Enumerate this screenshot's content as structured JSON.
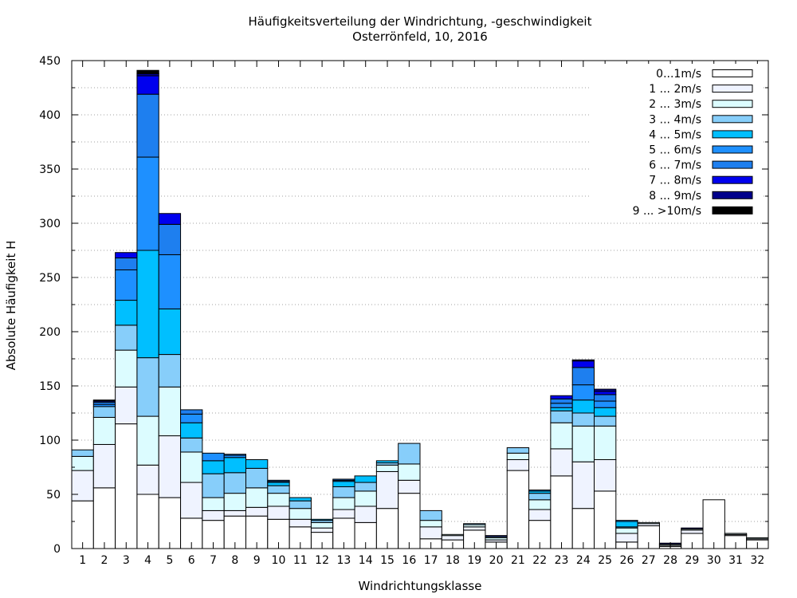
{
  "chart_data": {
    "type": "bar",
    "stacked": true,
    "title": "Häufigkeitsverteilung der Windrichtung, -geschwindigkeit",
    "subtitle": "Osterrönfeld, 10, 2016",
    "xlabel": "Windrichtungsklasse",
    "ylabel": "Absolute Häufigkeit H",
    "ylim": [
      0,
      450
    ],
    "yticks": [
      0,
      50,
      100,
      150,
      200,
      250,
      300,
      350,
      400,
      450
    ],
    "grid": "horizontal dotted",
    "legend_position": "top-right",
    "categories": [
      "1",
      "2",
      "3",
      "4",
      "5",
      "6",
      "7",
      "8",
      "9",
      "10",
      "11",
      "12",
      "13",
      "14",
      "15",
      "16",
      "17",
      "18",
      "19",
      "20",
      "21",
      "22",
      "23",
      "24",
      "25",
      "26",
      "27",
      "28",
      "29",
      "30",
      "31",
      "32"
    ],
    "series": [
      {
        "name": "0...1m/s",
        "color": "#ffffff",
        "values": [
          44,
          56,
          115,
          50,
          47,
          28,
          26,
          30,
          30,
          27,
          20,
          15,
          28,
          24,
          37,
          51,
          9,
          8,
          17,
          6,
          72,
          26,
          67,
          37,
          53,
          6,
          21,
          2,
          14,
          45,
          12,
          8
        ]
      },
      {
        "name": "1 ... 2m/s",
        "color": "#eff3ff",
        "values": [
          28,
          40,
          34,
          27,
          57,
          33,
          9,
          5,
          8,
          12,
          7,
          4,
          8,
          15,
          34,
          12,
          11,
          4,
          3,
          2,
          10,
          10,
          25,
          43,
          29,
          8,
          2,
          1,
          3,
          0,
          1,
          1
        ]
      },
      {
        "name": "2 ... 3m/s",
        "color": "#dcfcff",
        "values": [
          13,
          25,
          34,
          45,
          45,
          28,
          12,
          16,
          18,
          12,
          10,
          5,
          11,
          14,
          6,
          15,
          6,
          1,
          2,
          2,
          6,
          9,
          24,
          33,
          31,
          5,
          1,
          1,
          1,
          0,
          1,
          1
        ]
      },
      {
        "name": "3 ... 4m/s",
        "color": "#87cefa",
        "values": [
          6,
          10,
          23,
          54,
          30,
          13,
          22,
          19,
          18,
          7,
          7,
          2,
          10,
          8,
          2,
          19,
          9,
          0,
          1,
          1,
          5,
          6,
          11,
          12,
          9,
          1,
          0,
          0,
          0,
          0,
          0,
          0
        ]
      },
      {
        "name": "4 ... 5m/s",
        "color": "#00bfff",
        "values": [
          0,
          0,
          23,
          99,
          42,
          14,
          12,
          14,
          8,
          3,
          3,
          1,
          5,
          6,
          2,
          0,
          0,
          0,
          0,
          0,
          0,
          2,
          3,
          12,
          8,
          5,
          0,
          0,
          0,
          0,
          0,
          0
        ]
      },
      {
        "name": "5 ... 6m/s",
        "color": "#1e90ff",
        "values": [
          0,
          2,
          28,
          86,
          50,
          8,
          7,
          2,
          0,
          1,
          0,
          0,
          1,
          0,
          0,
          0,
          0,
          0,
          0,
          0,
          0,
          1,
          4,
          14,
          6,
          1,
          0,
          0,
          0,
          0,
          0,
          0
        ]
      },
      {
        "name": "6 ... 7m/s",
        "color": "#1e7fef",
        "values": [
          0,
          2,
          11,
          58,
          28,
          4,
          0,
          1,
          0,
          1,
          0,
          0,
          1,
          0,
          0,
          0,
          0,
          0,
          0,
          0,
          0,
          0,
          4,
          16,
          6,
          0,
          0,
          0,
          0,
          0,
          0,
          0
        ]
      },
      {
        "name": "7 ... 8m/s",
        "color": "#0000ee",
        "values": [
          0,
          1,
          5,
          17,
          10,
          0,
          0,
          0,
          0,
          0,
          0,
          0,
          0,
          0,
          0,
          0,
          0,
          0,
          0,
          0,
          0,
          0,
          3,
          6,
          3,
          0,
          0,
          0,
          0,
          0,
          0,
          0
        ]
      },
      {
        "name": "8 ... 9m/s",
        "color": "#00008b",
        "values": [
          0,
          0,
          0,
          2,
          0,
          0,
          0,
          0,
          0,
          0,
          0,
          0,
          0,
          0,
          0,
          0,
          0,
          0,
          0,
          1,
          0,
          0,
          0,
          1,
          2,
          0,
          0,
          1,
          1,
          0,
          0,
          0
        ]
      },
      {
        "name": "9 ... >10m/s",
        "color": "#000000",
        "values": [
          0,
          1,
          0,
          3,
          0,
          0,
          0,
          0,
          0,
          0,
          0,
          0,
          0,
          0,
          0,
          0,
          0,
          0,
          0,
          0,
          0,
          0,
          0,
          0,
          0,
          0,
          0,
          0,
          0,
          0,
          0,
          0
        ]
      }
    ]
  }
}
